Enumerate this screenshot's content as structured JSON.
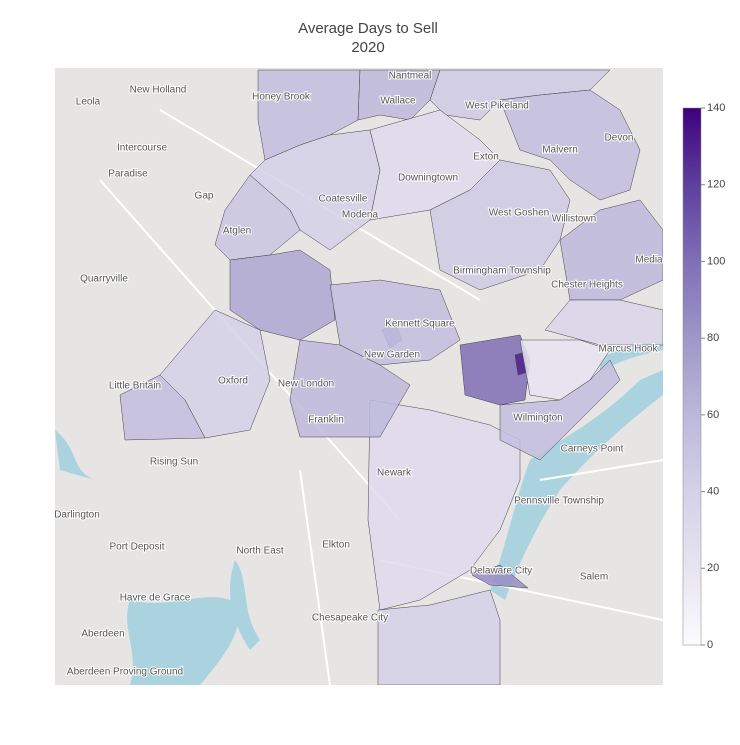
{
  "chart_data": {
    "type": "choropleth",
    "title": "Average Days to Sell",
    "subtitle": "2020",
    "colorscale": [
      "#fcfbfd",
      "#e7e4f1",
      "#d4d1e8",
      "#bcb8da",
      "#9e97c8",
      "#7f6fb5",
      "#5e3f9e",
      "#3f007d"
    ],
    "clim": [
      0,
      140
    ],
    "colorbar_ticks": [
      0,
      20,
      40,
      60,
      80,
      100,
      120,
      140
    ],
    "values": [
      55,
      60,
      45,
      55,
      40,
      30,
      50,
      70,
      40,
      55,
      45,
      90,
      100,
      130,
      20,
      30,
      85,
      40,
      55,
      60,
      60,
      55,
      35
    ],
    "map_labels": [
      "Leola",
      "New Holland",
      "Honey Brook",
      "Nantmeal",
      "Wallace",
      "West Pikeland",
      "Intercourse",
      "Malvern",
      "Devon",
      "Exton",
      "Paradise",
      "Downingtown",
      "Gap",
      "Coatesville",
      "Modena",
      "West Goshen",
      "Willistown",
      "Media",
      "Atglen",
      "Quarryville",
      "Birmingham Township",
      "Chester Heights",
      "Kennett Square",
      "Marcus Hook",
      "New Garden",
      "Oxford",
      "New London",
      "Little Britain",
      "Franklin",
      "Wilmington",
      "Carneys Point",
      "Rising Sun",
      "Newark",
      "Pennsville Township",
      "Darlington",
      "Port Deposit",
      "North East",
      "Elkton",
      "Delaware City",
      "Salem",
      "Havre de Grace",
      "Chesapeake City",
      "Aberdeen",
      "Aberdeen Proving Ground"
    ]
  }
}
